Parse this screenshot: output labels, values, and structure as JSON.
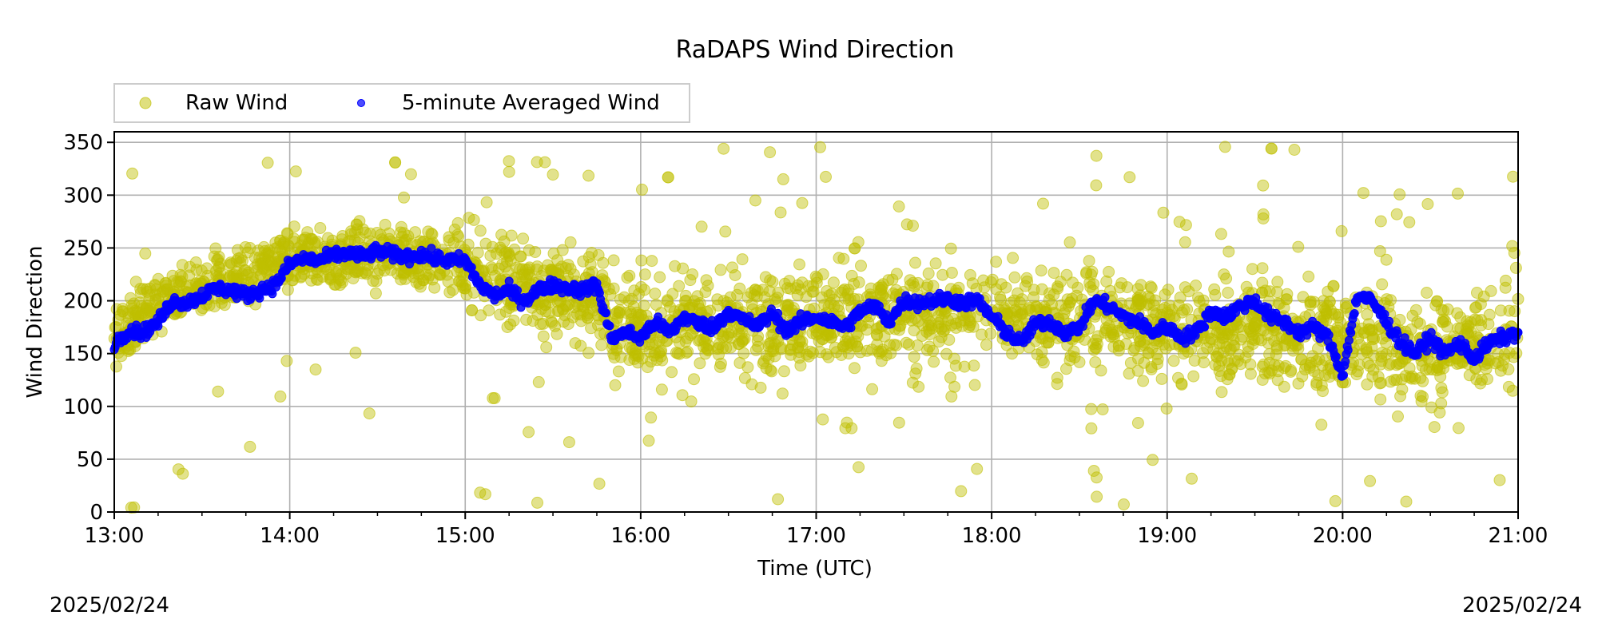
{
  "chart_data": {
    "type": "scatter",
    "title": "RaDAPS Wind Direction",
    "xlabel": "Time (UTC)",
    "ylabel": "Wind Direction",
    "x_ticks": [
      "13:00",
      "14:00",
      "15:00",
      "16:00",
      "17:00",
      "18:00",
      "19:00",
      "20:00",
      "21:00"
    ],
    "y_ticks": [
      "0",
      "50",
      "100",
      "150",
      "200",
      "250",
      "300",
      "350"
    ],
    "xlim": [
      "13:00",
      "21:00"
    ],
    "ylim": [
      0,
      360
    ],
    "grid": true,
    "legend_position": "upper-left, above plot",
    "date_left": "2025/02/24",
    "date_right": "2025/02/24",
    "series": [
      {
        "name": "Raw Wind",
        "color": "#bfbf00",
        "marker": "circle",
        "spread_note": "dense noisy scatter around the averaged series",
        "approx_center": [
          [
            "13:00",
            165
          ],
          [
            "13:15",
            200
          ],
          [
            "13:30",
            215
          ],
          [
            "14:00",
            240
          ],
          [
            "14:30",
            245
          ],
          [
            "15:00",
            235
          ],
          [
            "15:30",
            210
          ],
          [
            "16:00",
            175
          ],
          [
            "17:00",
            180
          ],
          [
            "18:00",
            190
          ],
          [
            "19:00",
            175
          ],
          [
            "20:00",
            165
          ],
          [
            "20:30",
            150
          ],
          [
            "21:00",
            170
          ]
        ]
      },
      {
        "name": "5-minute Averaged Wind",
        "color": "#0000ff",
        "marker": "point",
        "points": [
          [
            "13:00",
            160
          ],
          [
            "13:05",
            172
          ],
          [
            "13:10",
            170
          ],
          [
            "13:15",
            180
          ],
          [
            "13:20",
            200
          ],
          [
            "13:25",
            198
          ],
          [
            "13:30",
            205
          ],
          [
            "13:35",
            212
          ],
          [
            "13:40",
            210
          ],
          [
            "13:45",
            205
          ],
          [
            "13:50",
            210
          ],
          [
            "13:55",
            215
          ],
          [
            "14:00",
            235
          ],
          [
            "14:05",
            240
          ],
          [
            "14:10",
            238
          ],
          [
            "14:15",
            243
          ],
          [
            "14:20",
            245
          ],
          [
            "14:25",
            242
          ],
          [
            "14:30",
            247
          ],
          [
            "14:35",
            244
          ],
          [
            "14:40",
            242
          ],
          [
            "14:45",
            244
          ],
          [
            "14:50",
            240
          ],
          [
            "14:55",
            238
          ],
          [
            "15:00",
            238
          ],
          [
            "15:05",
            215
          ],
          [
            "15:10",
            205
          ],
          [
            "15:15",
            210
          ],
          [
            "15:20",
            200
          ],
          [
            "15:25",
            210
          ],
          [
            "15:30",
            215
          ],
          [
            "15:35",
            212
          ],
          [
            "15:40",
            210
          ],
          [
            "15:45",
            215
          ],
          [
            "15:50",
            165
          ],
          [
            "15:55",
            170
          ],
          [
            "16:00",
            165
          ],
          [
            "16:05",
            180
          ],
          [
            "16:10",
            170
          ],
          [
            "16:15",
            185
          ],
          [
            "16:20",
            178
          ],
          [
            "16:25",
            175
          ],
          [
            "16:30",
            190
          ],
          [
            "16:35",
            182
          ],
          [
            "16:40",
            176
          ],
          [
            "16:45",
            188
          ],
          [
            "16:50",
            172
          ],
          [
            "16:55",
            180
          ],
          [
            "17:00",
            185
          ],
          [
            "17:05",
            180
          ],
          [
            "17:10",
            175
          ],
          [
            "17:15",
            190
          ],
          [
            "17:20",
            195
          ],
          [
            "17:25",
            180
          ],
          [
            "17:30",
            200
          ],
          [
            "17:35",
            198
          ],
          [
            "17:40",
            200
          ],
          [
            "17:45",
            202
          ],
          [
            "17:50",
            198
          ],
          [
            "17:55",
            200
          ],
          [
            "18:00",
            185
          ],
          [
            "18:05",
            170
          ],
          [
            "18:10",
            160
          ],
          [
            "18:15",
            178
          ],
          [
            "18:20",
            180
          ],
          [
            "18:25",
            170
          ],
          [
            "18:30",
            175
          ],
          [
            "18:35",
            200
          ],
          [
            "18:40",
            195
          ],
          [
            "18:45",
            185
          ],
          [
            "18:50",
            180
          ],
          [
            "18:55",
            170
          ],
          [
            "19:00",
            175
          ],
          [
            "19:05",
            165
          ],
          [
            "19:10",
            170
          ],
          [
            "19:15",
            190
          ],
          [
            "19:20",
            185
          ],
          [
            "19:25",
            195
          ],
          [
            "19:30",
            200
          ],
          [
            "19:35",
            185
          ],
          [
            "19:40",
            180
          ],
          [
            "19:45",
            170
          ],
          [
            "19:50",
            175
          ],
          [
            "19:55",
            165
          ],
          [
            "20:00",
            130
          ],
          [
            "20:05",
            205
          ],
          [
            "20:10",
            200
          ],
          [
            "20:15",
            180
          ],
          [
            "20:20",
            160
          ],
          [
            "20:25",
            150
          ],
          [
            "20:30",
            165
          ],
          [
            "20:35",
            150
          ],
          [
            "20:40",
            160
          ],
          [
            "20:45",
            145
          ],
          [
            "20:50",
            160
          ],
          [
            "20:55",
            165
          ],
          [
            "21:00",
            170
          ]
        ]
      }
    ]
  }
}
